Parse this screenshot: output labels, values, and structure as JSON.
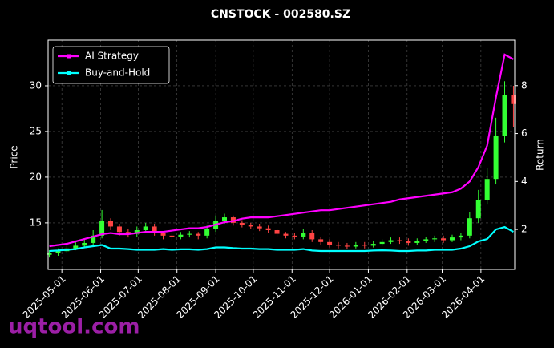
{
  "chart_data": {
    "type": "candlestick",
    "title": "CNSTOCK - 002580.SZ",
    "ylabel": "Price",
    "y2label": "Return",
    "watermark": "uqtool.com",
    "x": [
      "2025-04-21",
      "2025-04-28",
      "2025-05-05",
      "2025-05-12",
      "2025-05-19",
      "2025-05-26",
      "2025-06-02",
      "2025-06-09",
      "2025-06-16",
      "2025-06-23",
      "2025-06-30",
      "2025-07-07",
      "2025-07-14",
      "2025-07-21",
      "2025-07-28",
      "2025-08-04",
      "2025-08-11",
      "2025-08-18",
      "2025-08-25",
      "2025-09-01",
      "2025-09-08",
      "2025-09-15",
      "2025-09-22",
      "2025-09-29",
      "2025-10-06",
      "2025-10-13",
      "2025-10-20",
      "2025-10-27",
      "2025-11-03",
      "2025-11-10",
      "2025-11-17",
      "2025-11-24",
      "2025-12-01",
      "2025-12-08",
      "2025-12-15",
      "2025-12-22",
      "2025-12-29",
      "2026-01-05",
      "2026-01-12",
      "2026-01-19",
      "2026-01-26",
      "2026-02-02",
      "2026-02-09",
      "2026-02-16",
      "2026-02-23",
      "2026-03-02",
      "2026-03-09",
      "2026-03-16",
      "2026-03-23",
      "2026-03-30",
      "2026-04-06",
      "2026-04-13",
      "2026-04-20",
      "2026-04-27"
    ],
    "open": [
      11.5,
      11.7,
      11.9,
      12.2,
      12.5,
      12.8,
      13.6,
      15.2,
      14.6,
      14.0,
      13.8,
      14.2,
      14.6,
      13.9,
      13.6,
      13.5,
      13.7,
      13.8,
      13.6,
      14.3,
      15.2,
      15.6,
      15.0,
      14.8,
      14.6,
      14.4,
      14.2,
      13.8,
      13.6,
      13.5,
      13.9,
      13.2,
      12.9,
      12.6,
      12.5,
      12.4,
      12.6,
      12.5,
      12.7,
      12.9,
      13.1,
      13.0,
      12.8,
      13.0,
      13.2,
      13.3,
      13.1,
      13.4,
      13.6,
      15.5,
      17.5,
      19.8,
      24.5,
      29.0
    ],
    "high": [
      12.0,
      12.2,
      12.5,
      12.9,
      13.2,
      14.2,
      16.4,
      15.5,
      14.9,
      14.3,
      14.6,
      15.0,
      14.9,
      14.1,
      13.9,
      14.0,
      14.1,
      14.0,
      14.7,
      15.8,
      16.0,
      15.8,
      15.3,
      15.0,
      14.9,
      14.7,
      14.4,
      14.0,
      13.9,
      14.3,
      14.2,
      13.5,
      13.2,
      12.9,
      12.8,
      12.9,
      12.9,
      13.0,
      13.2,
      13.4,
      13.4,
      13.3,
      13.3,
      13.5,
      13.6,
      13.6,
      13.7,
      13.9,
      16.2,
      18.6,
      21.0,
      26.5,
      30.5,
      30.0
    ],
    "low": [
      11.2,
      11.4,
      11.7,
      12.0,
      12.3,
      12.5,
      13.3,
      14.2,
      13.6,
      13.4,
      13.5,
      13.9,
      13.6,
      13.2,
      13.1,
      13.2,
      13.4,
      13.2,
      13.3,
      14.0,
      14.9,
      14.7,
      14.5,
      14.3,
      14.1,
      13.9,
      13.5,
      13.3,
      13.2,
      13.2,
      12.9,
      12.6,
      12.3,
      12.2,
      12.1,
      12.2,
      12.2,
      12.3,
      12.5,
      12.7,
      12.7,
      12.5,
      12.6,
      12.8,
      12.9,
      12.8,
      12.9,
      13.1,
      13.3,
      15.0,
      17.0,
      19.2,
      23.8,
      25.5
    ],
    "close": [
      11.7,
      11.9,
      12.2,
      12.5,
      12.8,
      13.6,
      15.2,
      14.6,
      14.0,
      13.8,
      14.2,
      14.6,
      13.9,
      13.6,
      13.5,
      13.7,
      13.8,
      13.6,
      14.3,
      15.2,
      15.6,
      15.0,
      14.8,
      14.6,
      14.4,
      14.2,
      13.8,
      13.6,
      13.5,
      13.9,
      13.2,
      12.9,
      12.6,
      12.5,
      12.4,
      12.6,
      12.5,
      12.7,
      12.9,
      13.1,
      13.0,
      12.8,
      13.0,
      13.2,
      13.3,
      13.1,
      13.4,
      13.6,
      15.5,
      17.5,
      19.8,
      24.5,
      29.0,
      28.0
    ],
    "up_color": "#33ff33",
    "down_color": "#ff4444",
    "series": [
      {
        "name": "AI Strategy",
        "color": "#ff00ff",
        "axis": "y2",
        "values": [
          1.3,
          1.35,
          1.4,
          1.5,
          1.6,
          1.7,
          1.8,
          1.85,
          1.8,
          1.8,
          1.85,
          1.9,
          1.9,
          1.9,
          1.95,
          2.0,
          2.05,
          2.05,
          2.1,
          2.2,
          2.3,
          2.35,
          2.45,
          2.5,
          2.5,
          2.5,
          2.55,
          2.6,
          2.65,
          2.7,
          2.75,
          2.8,
          2.8,
          2.85,
          2.9,
          2.95,
          3.0,
          3.05,
          3.1,
          3.15,
          3.25,
          3.3,
          3.35,
          3.4,
          3.45,
          3.5,
          3.55,
          3.7,
          4.0,
          4.6,
          5.5,
          7.5,
          9.3,
          9.1
        ]
      },
      {
        "name": "Buy-and-Hold",
        "color": "#00ffff",
        "axis": "y2",
        "values": [
          1.1,
          1.12,
          1.15,
          1.18,
          1.25,
          1.3,
          1.35,
          1.2,
          1.2,
          1.18,
          1.15,
          1.15,
          1.15,
          1.18,
          1.15,
          1.17,
          1.17,
          1.15,
          1.18,
          1.25,
          1.25,
          1.22,
          1.2,
          1.2,
          1.18,
          1.18,
          1.15,
          1.15,
          1.15,
          1.18,
          1.12,
          1.1,
          1.1,
          1.1,
          1.1,
          1.1,
          1.1,
          1.12,
          1.13,
          1.12,
          1.1,
          1.1,
          1.12,
          1.12,
          1.15,
          1.15,
          1.15,
          1.2,
          1.3,
          1.5,
          1.6,
          2.0,
          2.1,
          1.9
        ]
      }
    ],
    "xlim": [
      "2025-04-20",
      "2026-04-28"
    ],
    "xticks": [
      "2025-05-01",
      "2025-06-01",
      "2025-07-01",
      "2025-08-01",
      "2025-09-01",
      "2025-10-01",
      "2025-11-01",
      "2025-12-01",
      "2026-01-01",
      "2026-02-01",
      "2026-03-01",
      "2026-04-01"
    ],
    "ylim": [
      9.9,
      35
    ],
    "yticks": [
      15,
      20,
      25,
      30
    ],
    "y2lim": [
      0.33,
      9.9
    ],
    "y2ticks": [
      2,
      4,
      6,
      8
    ],
    "grid": true,
    "legend": "upper left"
  }
}
